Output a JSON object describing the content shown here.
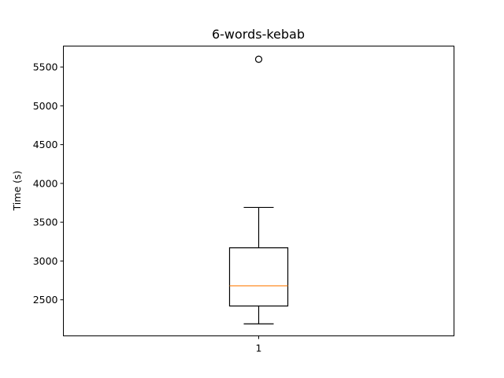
{
  "chart_data": {
    "type": "box",
    "title": "6-words-kebab",
    "xlabel": "",
    "ylabel": "Time (s)",
    "categories": [
      "1"
    ],
    "series": [
      {
        "category": "1",
        "whisker_low": 2190,
        "q1": 2420,
        "median": 2680,
        "q3": 3170,
        "whisker_high": 3690,
        "outliers": [
          5600
        ]
      }
    ],
    "ylim": [
      2035,
      5770
    ],
    "yticks": [
      2500,
      3000,
      3500,
      4000,
      4500,
      5000,
      5500
    ],
    "ytick_labels": [
      "2500",
      "3000",
      "3500",
      "4000",
      "4500",
      "5000",
      "5500"
    ],
    "grid": false,
    "legend": "none",
    "colors": {
      "box": "#000000",
      "median": "#ff7f0e",
      "outlier_marker": "#000000"
    }
  }
}
